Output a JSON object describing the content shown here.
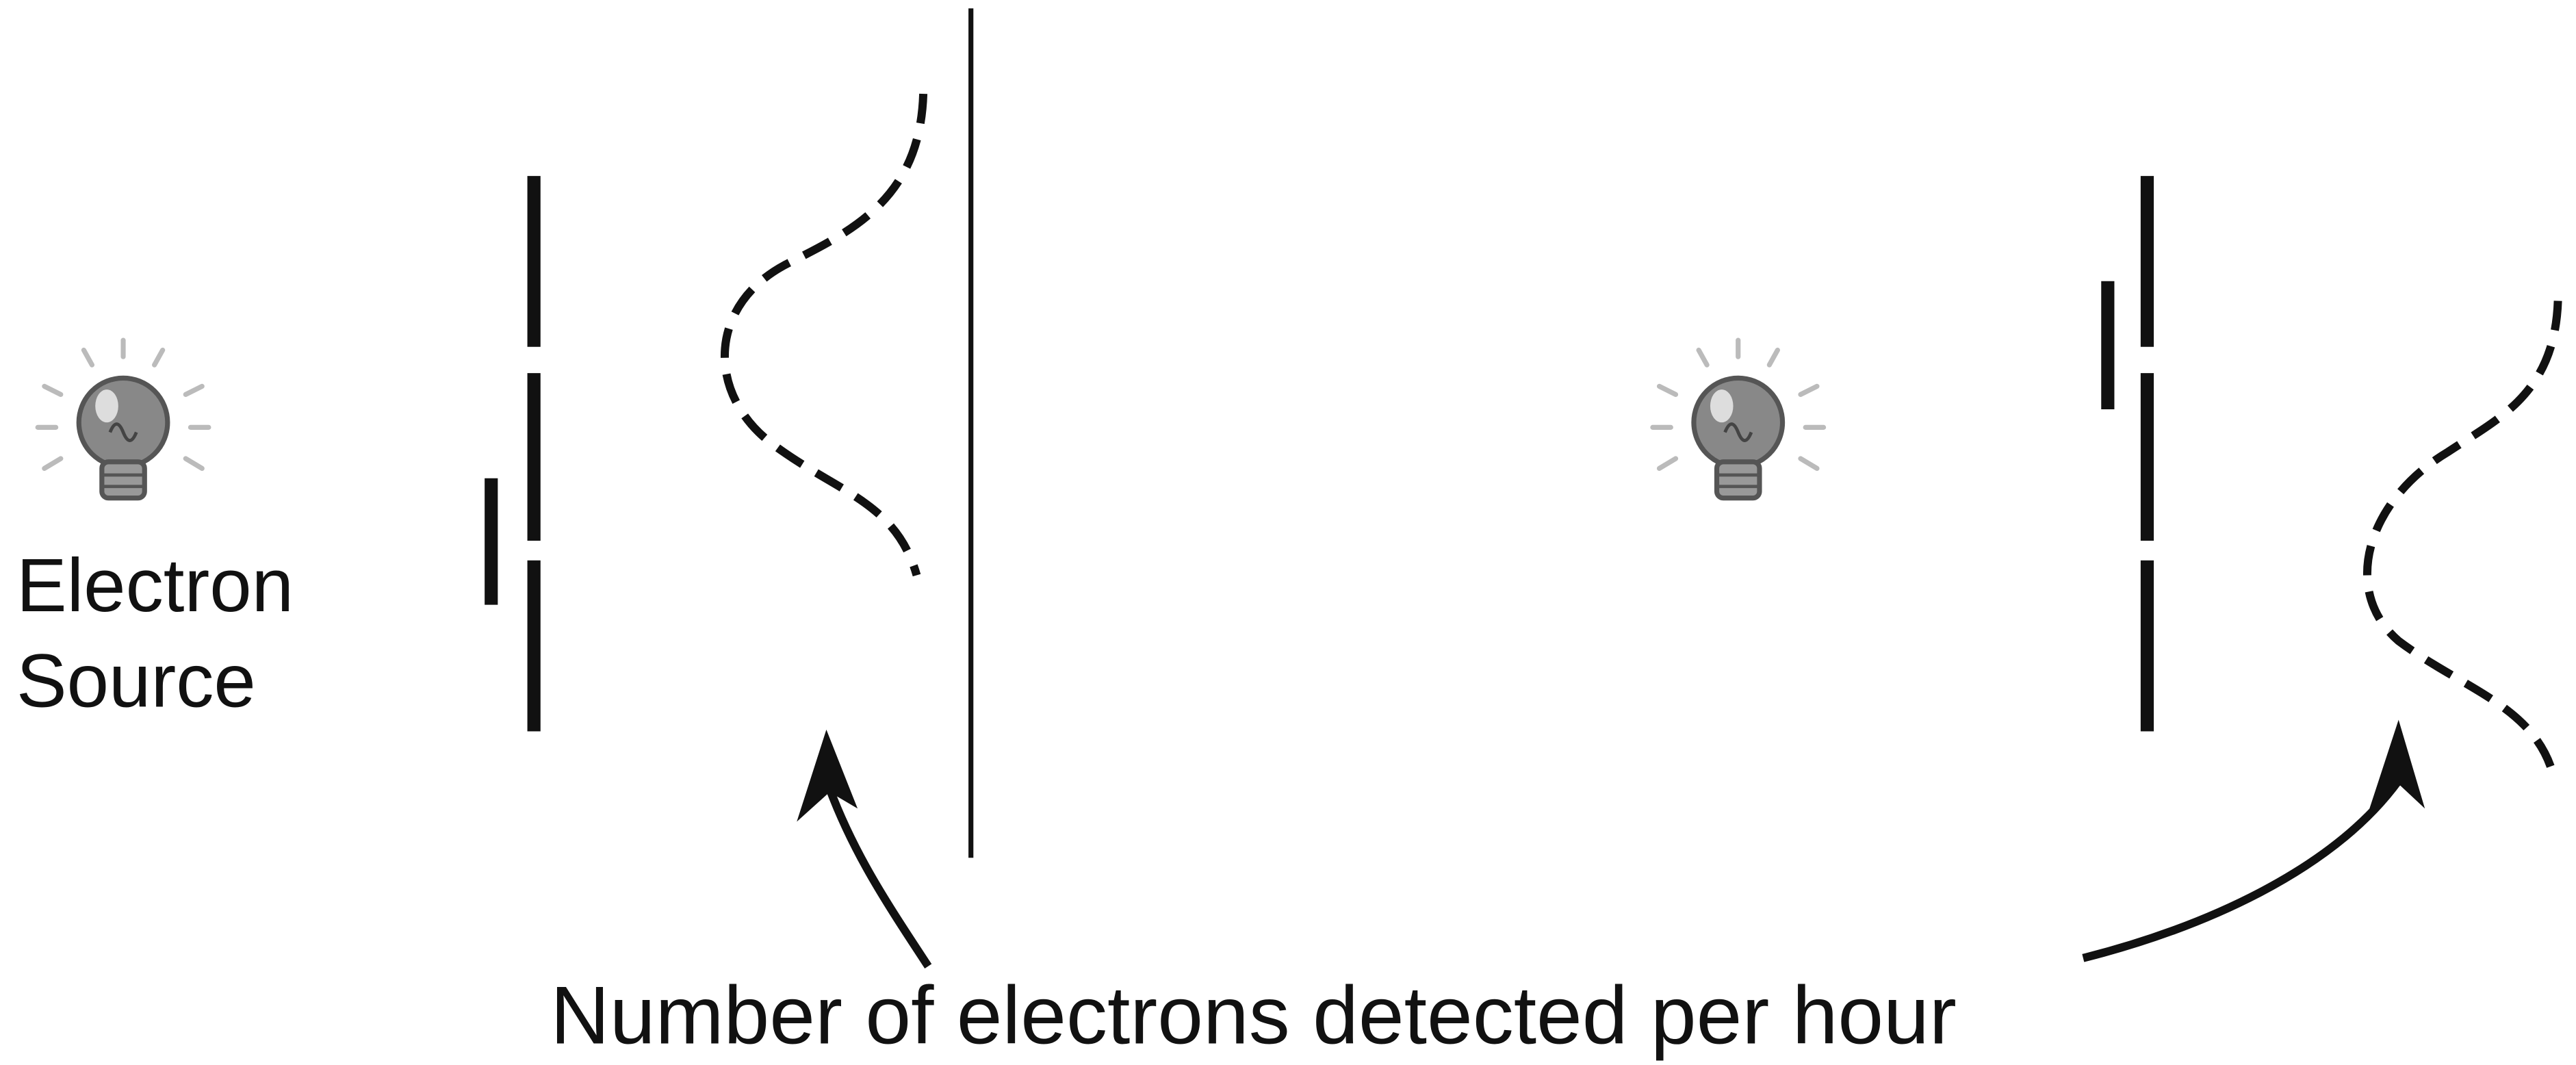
{
  "source_label": {
    "line1": "Electron",
    "line2": "Source"
  },
  "caption": "Number of electrons detected per hour"
}
